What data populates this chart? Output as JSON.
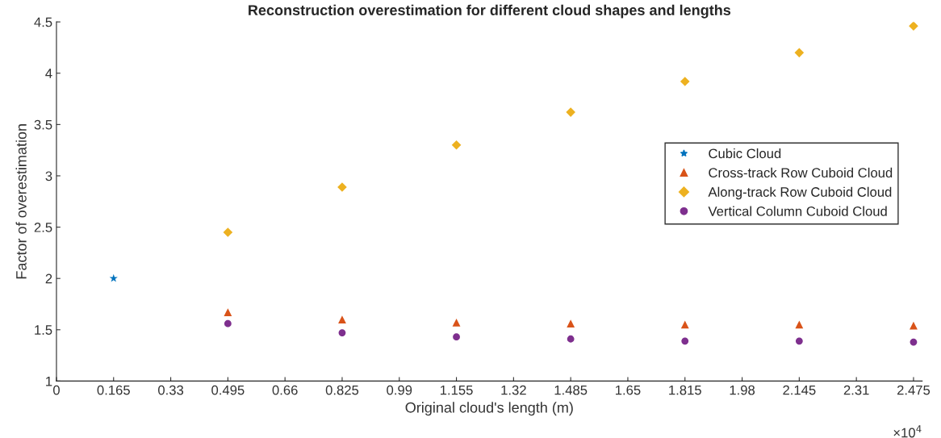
{
  "chart_data": {
    "type": "scatter",
    "title": "Reconstruction overestimation for different cloud shapes and lengths",
    "xlabel": "Original cloud's length (m)",
    "ylabel": "Factor of overestimation",
    "series": [
      {
        "name": "Cubic Cloud",
        "color": "#0072bd",
        "marker": "star",
        "x": [
          0.165
        ],
        "values": [
          2.0
        ]
      },
      {
        "name": "Cross-track Row Cuboid Cloud",
        "color": "#d95319",
        "marker": "triangle",
        "x": [
          0.495,
          0.825,
          1.155,
          1.485,
          1.815,
          2.145,
          2.475
        ],
        "values": [
          1.67,
          1.6,
          1.57,
          1.56,
          1.55,
          1.55,
          1.54
        ]
      },
      {
        "name": "Along-track Row Cuboid Cloud",
        "color": "#edb120",
        "marker": "diamond",
        "x": [
          0.495,
          0.825,
          1.155,
          1.485,
          1.815,
          2.145,
          2.475
        ],
        "values": [
          2.45,
          2.89,
          3.3,
          3.62,
          3.92,
          4.2,
          4.46
        ]
      },
      {
        "name": "Vertical Column Cuboid Cloud",
        "color": "#7e2f8e",
        "marker": "circle",
        "x": [
          0.495,
          0.825,
          1.155,
          1.485,
          1.815,
          2.145,
          2.475
        ],
        "values": [
          1.56,
          1.47,
          1.43,
          1.41,
          1.39,
          1.39,
          1.38
        ]
      }
    ],
    "xlim": [
      0,
      2.5
    ],
    "xticks": [
      0,
      0.165,
      0.33,
      0.495,
      0.66,
      0.825,
      0.99,
      1.155,
      1.32,
      1.485,
      1.65,
      1.815,
      1.98,
      2.145,
      2.31,
      2.475
    ],
    "ylim": [
      1,
      4.5
    ],
    "yticks": [
      1,
      1.5,
      2,
      2.5,
      3,
      3.5,
      4,
      4.5
    ],
    "annotations": [
      "×10$^{4}$"
    ],
    "grid": false,
    "legend": "center right"
  }
}
